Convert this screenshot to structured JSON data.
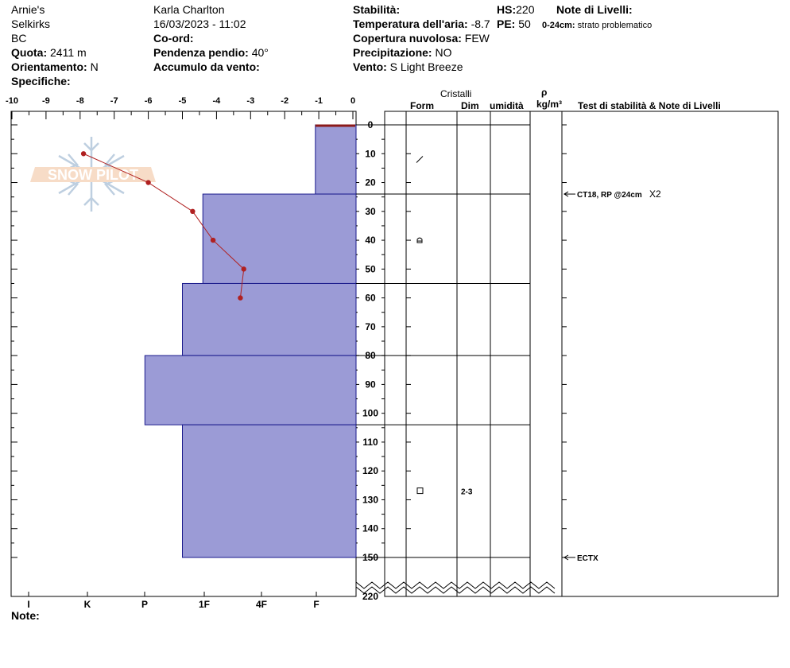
{
  "header": {
    "location_name": "Arnie's",
    "range": "Selkirks",
    "region": "BC",
    "observer": "Karla Charlton",
    "datetime": "16/03/2023 - 11:02",
    "elevation_label": "Quota:",
    "elevation_value": "2411 m",
    "aspect_label": "Orientamento:",
    "aspect_value": "N",
    "specifics_label": "Specifiche:",
    "coords_label": "Co-ord:",
    "slope_label": "Pendenza pendio:",
    "slope_value": "40°",
    "wind_loading_label": "Accumulo da vento:",
    "stability_label": "Stabilità:",
    "air_temp_label": "Temperatura dell'aria:",
    "air_temp_value": "-8.7",
    "cloud_label": "Copertura nuvolosa:",
    "cloud_value": "FEW",
    "precip_label": "Precipitazione:",
    "precip_value": "NO",
    "wind_label": "Vento:",
    "wind_value": "S Light Breeze",
    "hs_label": "HS:",
    "hs_value": "220",
    "pe_label": "PE:",
    "pe_value": "50",
    "layer_notes_label": "Note di Livelli:",
    "layer_note_range": "0-24cm:",
    "layer_note_text": "strato problematico"
  },
  "columns": {
    "crystals": "Cristalli",
    "form": "Form",
    "dim": "Dim",
    "moisture": "umidità",
    "density_symbol": "ρ",
    "density_unit": "kg/m³",
    "stability_notes": "Test di stabilità & Note di Livelli"
  },
  "footer": {
    "notes_label": "Note:"
  },
  "logo_text": "SNOW PILOT",
  "colors": {
    "hardness_fill": "#9b9bd6",
    "hardness_stroke": "#1a1a8c",
    "temp_line": "#b02020"
  },
  "chart_data": {
    "type": "snow-profile",
    "temp_axis_ticks": [
      "-10",
      "-9",
      "-8",
      "-7",
      "-6",
      "-5",
      "-4",
      "-3",
      "-2",
      "-1",
      "0"
    ],
    "temp_range": [
      -10,
      0
    ],
    "depth_ticks": [
      "0",
      "10",
      "20",
      "30",
      "40",
      "50",
      "60",
      "70",
      "80",
      "90",
      "100",
      "110",
      "120",
      "130",
      "140",
      "150",
      "220"
    ],
    "depth_range": [
      0,
      150
    ],
    "hardness_ticks": [
      "I",
      "K",
      "P",
      "1F",
      "4F",
      "F"
    ],
    "temperature_profile": [
      {
        "depth": 0,
        "temp": -0.5
      },
      {
        "depth": 10,
        "temp": -7.9
      },
      {
        "depth": 20,
        "temp": -6.0
      },
      {
        "depth": 30,
        "temp": -4.7
      },
      {
        "depth": 40,
        "temp": -4.1
      },
      {
        "depth": 50,
        "temp": -3.2
      },
      {
        "depth": 60,
        "temp": -3.3
      }
    ],
    "hardness_layers": [
      {
        "top": 0,
        "bottom": 24,
        "value": -1.1
      },
      {
        "top": 24,
        "bottom": 55,
        "value": -4.4
      },
      {
        "top": 55,
        "bottom": 80,
        "value": -5.0
      },
      {
        "top": 80,
        "bottom": 104,
        "value": -6.1
      },
      {
        "top": 104,
        "bottom": 150,
        "value": -5.0
      }
    ],
    "layer_boundaries": [
      0,
      24,
      55,
      80,
      104,
      150
    ],
    "crystals": [
      {
        "depth": 12,
        "form": "slash",
        "dim": ""
      },
      {
        "depth": 40,
        "form": "rounded",
        "dim": ""
      },
      {
        "depth": 127,
        "form": "square",
        "dim": "2-3"
      }
    ],
    "tests": [
      {
        "depth": 24,
        "label": "CT18, RP @24cm",
        "extra": "X2"
      },
      {
        "depth": 150,
        "label": "ECTX",
        "extra": ""
      }
    ]
  }
}
